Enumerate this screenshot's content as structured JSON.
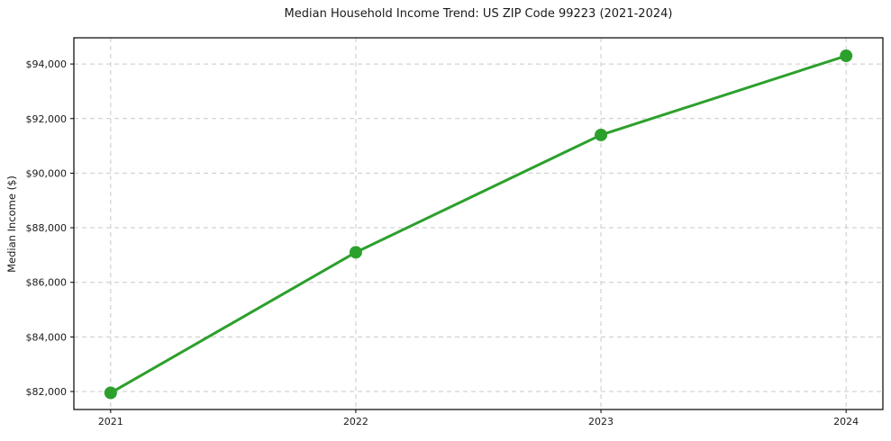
{
  "chart_data": {
    "type": "line",
    "title": "Median Household Income Trend: US ZIP Code 99223 (2021-2024)",
    "xlabel": "",
    "ylabel": "Median Income ($)",
    "categories": [
      "2021",
      "2022",
      "2023",
      "2024"
    ],
    "x": [
      2021,
      2022,
      2023,
      2024
    ],
    "series": [
      {
        "name": "Median Household Income",
        "values": [
          81950,
          87100,
          91400,
          94300
        ]
      }
    ],
    "yticks": [
      82000,
      84000,
      86000,
      88000,
      90000,
      92000,
      94000
    ],
    "y_tick_labels": [
      "$82,000",
      "$84,000",
      "$86,000",
      "$88,000",
      "$90,000",
      "$92,000",
      "$94,000"
    ],
    "ylim": [
      81340,
      94960
    ],
    "xlim": [
      2020.85,
      2024.15
    ],
    "grid": true,
    "grid_style": "dashed",
    "legend": "none",
    "colors": {
      "line": "#2ca02c",
      "marker": "#2ca02c",
      "grid": "#c9c9c9",
      "axis": "#000000",
      "text": "#1a1a1a",
      "background": "#ffffff"
    },
    "marker_radius": 7,
    "line_width": 3
  }
}
